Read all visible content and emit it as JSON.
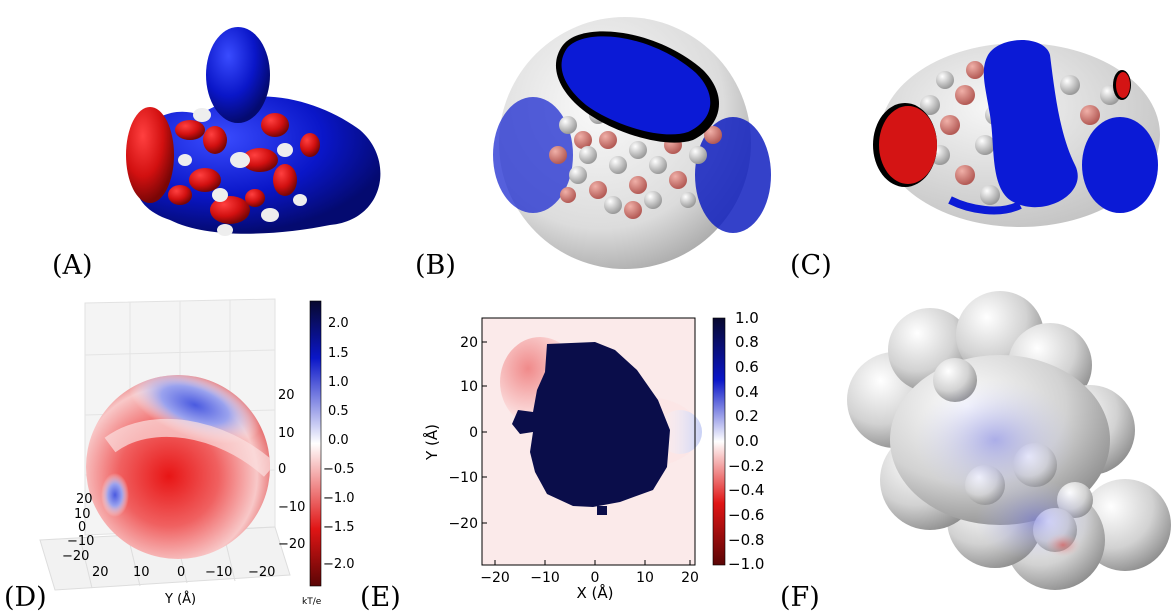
{
  "panels": {
    "a": {
      "label": "(A)"
    },
    "b": {
      "label": "(B)"
    },
    "c": {
      "label": "(C)"
    },
    "d": {
      "label": "(D)",
      "colorbar": {
        "ticks": [
          "2.0",
          "1.5",
          "1.0",
          "0.5",
          "0.0",
          "−0.5",
          "−1.0",
          "−1.5",
          "−2.0"
        ],
        "unit": "kT/e"
      },
      "axis_y_label": "Y (Å)",
      "bottom_ticks": [
        "20",
        "10",
        "0",
        "−10",
        "−20"
      ],
      "right_ticks": [
        "20",
        "10",
        "0",
        "−10",
        "−20"
      ],
      "left_ticks": [
        "20",
        "10",
        "0",
        "−10",
        "−20"
      ]
    },
    "e": {
      "label": "(E)",
      "xlabel": "X (Å)",
      "ylabel": "Y (Å)",
      "x_ticks": [
        "−20",
        "−10",
        "0",
        "10",
        "20"
      ],
      "y_ticks": [
        "20",
        "10",
        "0",
        "−10",
        "−20"
      ],
      "colorbar_ticks": [
        "1.0",
        "0.8",
        "0.6",
        "0.4",
        "0.2",
        "0.0",
        "−0.2",
        "−0.4",
        "−0.6",
        "−0.8",
        "−1.0"
      ]
    },
    "f": {
      "label": "(F)"
    }
  },
  "colors": {
    "blue": "#0a16c8",
    "red": "#d21010",
    "navy": "#0a0d4a",
    "white": "#f0f0f0"
  }
}
